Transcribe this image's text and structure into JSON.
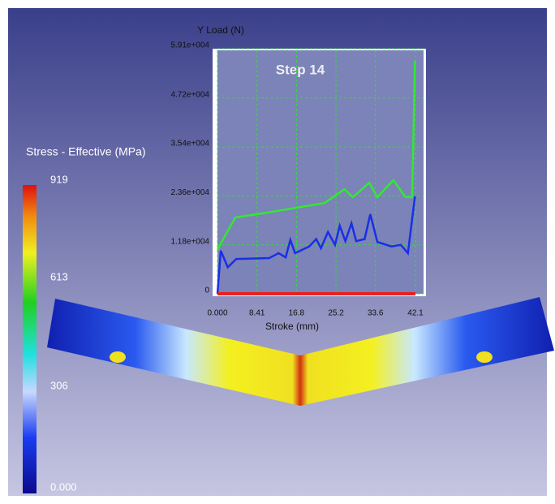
{
  "colorbar": {
    "title": "Stress - Effective (MPa)",
    "labels": [
      "919",
      "613",
      "306",
      "0.000"
    ]
  },
  "chart_data": {
    "type": "line",
    "annotation": "Step 14",
    "ylabel": "Y Load (N)",
    "xlabel": "Stroke (mm)",
    "xlim": [
      0,
      42.1
    ],
    "ylim": [
      0,
      59100
    ],
    "xticks": [
      {
        "value": 0,
        "label": "0.000"
      },
      8.41,
      16.8,
      25.2,
      33.6,
      42.1
    ],
    "yticks": [
      0,
      {
        "value": 11800,
        "label": "1.18e+004"
      },
      {
        "value": 23600,
        "label": "2.36e+004"
      },
      {
        "value": 35400,
        "label": "3.54e+004"
      },
      {
        "value": 47200,
        "label": "4.72e+004"
      },
      {
        "value": 59100,
        "label": "5.91e+004"
      }
    ],
    "grid": true,
    "series": [
      {
        "color": "#33e833",
        "x": [
          0,
          0.9,
          3.8,
          10.7,
          17.6,
          22.8,
          27,
          28.8,
          32.3,
          34,
          37.4,
          40,
          41.4,
          42.0
        ],
        "values": [
          10600,
          12500,
          18400,
          19600,
          20900,
          21900,
          25200,
          23300,
          26800,
          23300,
          27400,
          23300,
          23300,
          56200
        ]
      },
      {
        "color": "#1a2ee8",
        "x": [
          0,
          0.7,
          2.2,
          4,
          11,
          13,
          14.5,
          15.5,
          16.5,
          19.5,
          21,
          22,
          23.5,
          25,
          26,
          27.2,
          28.5,
          29.5,
          31.3,
          32.5,
          34,
          37,
          39,
          40.5,
          42.0
        ],
        "values": [
          0,
          10400,
          6400,
          8400,
          8600,
          9800,
          8800,
          13000,
          9800,
          11400,
          13200,
          11000,
          14900,
          11800,
          16400,
          12700,
          17000,
          12700,
          13200,
          19200,
          12500,
          11400,
          11800,
          9800,
          23500
        ]
      },
      {
        "color": "#e82020",
        "x": [
          0,
          42.1
        ],
        "values": [
          0,
          0
        ]
      }
    ]
  }
}
